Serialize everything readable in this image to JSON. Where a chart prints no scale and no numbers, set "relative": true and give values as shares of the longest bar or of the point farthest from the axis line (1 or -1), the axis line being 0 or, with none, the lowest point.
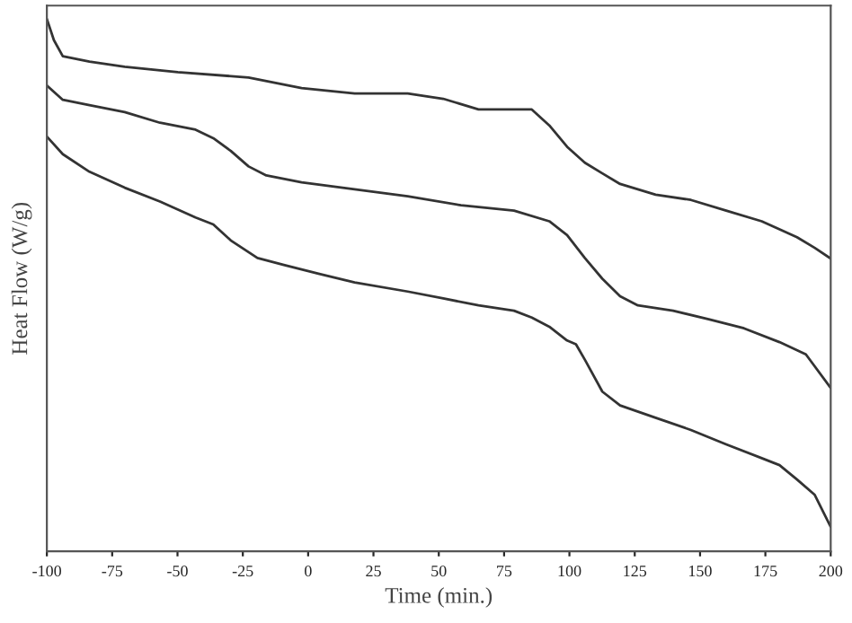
{
  "chart_data": {
    "type": "line",
    "relative": true,
    "xlabel": "Time (min.)",
    "ylabel": "Heat Flow (W/g)",
    "xlim": [
      -100,
      200
    ],
    "xticks": [
      -100,
      -75,
      -50,
      -25,
      0,
      25,
      50,
      75,
      100,
      125,
      150,
      175,
      200
    ],
    "tick_labels": "x",
    "grid": false,
    "legend": false,
    "marker": "none",
    "line_style": "solid",
    "series": [
      {
        "color": "#333333",
        "x": [
          -100,
          -97.3,
          -93.9,
          -83.7,
          -70.2,
          -49.9,
          -22.8,
          -2.5,
          17.8,
          38.1,
          51.7,
          65.2,
          78.8,
          85.6,
          92.3,
          99.1,
          105.9,
          112.6,
          119.4,
          133.0,
          146.5,
          160.0,
          173.6,
          187.1,
          193.9,
          200
        ],
        "values": [
          1.0,
          0.96,
          0.93,
          0.92,
          0.91,
          0.9,
          0.89,
          0.87,
          0.86,
          0.86,
          0.85,
          0.83,
          0.83,
          0.83,
          0.8,
          0.76,
          0.73,
          0.71,
          0.69,
          0.67,
          0.66,
          0.64,
          0.62,
          0.59,
          0.57,
          0.55
        ]
      },
      {
        "color": "#333333",
        "x": [
          -100,
          -93.9,
          -83.7,
          -70.2,
          -56.7,
          -43.1,
          -36.3,
          -29.6,
          -22.8,
          -16.0,
          -2.5,
          17.8,
          38.1,
          58.5,
          78.8,
          92.3,
          99.1,
          105.9,
          112.6,
          119.4,
          126.2,
          139.7,
          153.3,
          166.8,
          180.4,
          190.5,
          200
        ],
        "values": [
          0.875,
          0.848,
          0.838,
          0.825,
          0.805,
          0.792,
          0.776,
          0.752,
          0.723,
          0.706,
          0.693,
          0.68,
          0.667,
          0.65,
          0.64,
          0.62,
          0.594,
          0.551,
          0.512,
          0.479,
          0.462,
          0.452,
          0.436,
          0.419,
          0.393,
          0.37,
          0.307
        ]
      },
      {
        "color": "#333333",
        "x": [
          -100,
          -93.9,
          -83.7,
          -70.2,
          -56.7,
          -43.1,
          -36.3,
          -29.6,
          -19.4,
          -9.3,
          4.3,
          17.8,
          38.1,
          51.7,
          65.2,
          78.8,
          85.6,
          92.3,
          99.1,
          102.5,
          105.9,
          112.6,
          119.4,
          133.0,
          146.5,
          160.0,
          173.6,
          180.4,
          187.1,
          193.9,
          200
        ],
        "values": [
          0.779,
          0.746,
          0.713,
          0.683,
          0.657,
          0.627,
          0.614,
          0.584,
          0.551,
          0.538,
          0.521,
          0.505,
          0.488,
          0.475,
          0.462,
          0.452,
          0.439,
          0.422,
          0.396,
          0.389,
          0.36,
          0.3,
          0.274,
          0.251,
          0.228,
          0.201,
          0.175,
          0.162,
          0.135,
          0.106,
          0.046
        ]
      }
    ]
  }
}
